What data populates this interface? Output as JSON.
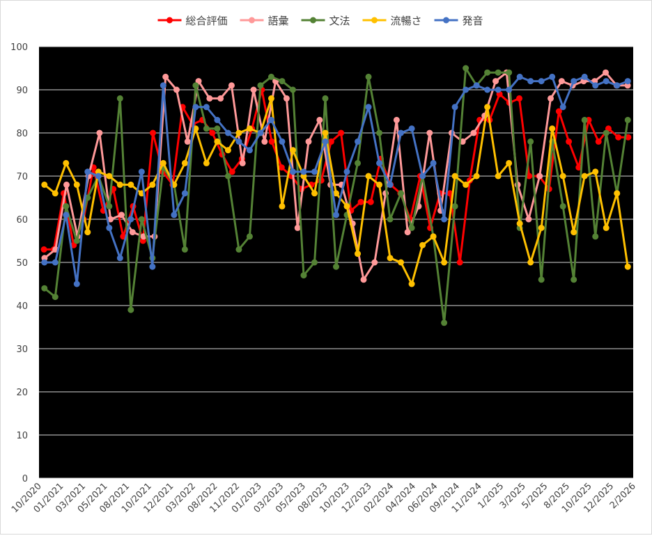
{
  "chart_data": {
    "type": "line",
    "title": "",
    "xlabel": "",
    "ylabel": "",
    "ylim": [
      0,
      100
    ],
    "yticks": [
      0,
      10,
      20,
      30,
      40,
      50,
      60,
      70,
      80,
      90,
      100
    ],
    "grid": true,
    "legend_position": "top",
    "plot_background": "#000000",
    "x_tick_labels": [
      "10/2020",
      "01/2021",
      "03/2021",
      "05/2021",
      "08/2021",
      "10/2021",
      "12/2021",
      "03/2022",
      "08/2022",
      "11/2022",
      "01/2023",
      "03/2023",
      "05/2023",
      "08/2023",
      "10/2023",
      "12/2023",
      "02/2024",
      "04/2024",
      "06/2024",
      "09/2024",
      "11/2024",
      "1/2025",
      "3/2025",
      "5/2025",
      "8/2025",
      "10/2025",
      "12/2025",
      "2/2026"
    ],
    "series": [
      {
        "name": "総合評価",
        "color": "#ff0000",
        "values": [
          53,
          53,
          66,
          54,
          60,
          72,
          62,
          67,
          56,
          63,
          55,
          80,
          71,
          68,
          86,
          82,
          83,
          80,
          75,
          71,
          74,
          81,
          90,
          78,
          72,
          70,
          67,
          68,
          69,
          78,
          80,
          62,
          64,
          64,
          74,
          68,
          66,
          60,
          70,
          58,
          66,
          66,
          50,
          69,
          83,
          83,
          89,
          87,
          88,
          70,
          70,
          67,
          85,
          78,
          72,
          83,
          78,
          81,
          79,
          79
        ]
      },
      {
        "name": "語彙",
        "color": "#ff9999",
        "values": [
          51,
          53,
          68,
          56,
          70,
          80,
          60,
          61,
          57,
          56,
          56,
          93,
          90,
          78,
          92,
          88,
          88,
          91,
          73,
          90,
          78,
          92,
          88,
          58,
          78,
          83,
          68,
          68,
          59,
          46,
          50,
          66,
          83,
          57,
          63,
          80,
          62,
          80,
          78,
          80,
          84,
          92,
          94,
          68,
          60,
          70,
          88,
          92,
          91,
          92,
          92,
          94,
          91,
          91
        ]
      },
      {
        "name": "文法",
        "color": "#548235",
        "values": [
          44,
          42,
          63,
          55,
          65,
          70,
          63,
          88,
          39,
          60,
          51,
          72,
          68,
          53,
          91,
          81,
          81,
          70,
          53,
          56,
          91,
          93,
          92,
          90,
          47,
          50,
          88,
          49,
          61,
          73,
          93,
          80,
          60,
          66,
          58,
          70,
          56,
          36,
          63,
          95,
          91,
          94,
          94,
          94,
          58,
          78,
          46,
          78,
          63,
          46,
          83,
          56,
          80,
          66,
          83
        ]
      },
      {
        "name": "流暢さ",
        "color": "#ffc000",
        "values": [
          68,
          66,
          73,
          68,
          57,
          71,
          70,
          68,
          68,
          66,
          68,
          73,
          68,
          73,
          81,
          73,
          78,
          76,
          80,
          81,
          80,
          88,
          63,
          76,
          70,
          66,
          80,
          66,
          63,
          52,
          70,
          68,
          51,
          50,
          45,
          54,
          56,
          50,
          70,
          68,
          70,
          86,
          70,
          73,
          59,
          50,
          58,
          81,
          70,
          57,
          70,
          71,
          58,
          66,
          49
        ]
      },
      {
        "name": "発音",
        "color": "#4472c4",
        "values": [
          50,
          50,
          61,
          45,
          71,
          70,
          58,
          51,
          60,
          71,
          49,
          91,
          61,
          66,
          86,
          86,
          83,
          80,
          78,
          76,
          80,
          83,
          78,
          71,
          71,
          71,
          78,
          61,
          71,
          78,
          86,
          73,
          68,
          80,
          81,
          70,
          73,
          60,
          86,
          90,
          91,
          90,
          90,
          90,
          93,
          92,
          92,
          93,
          86,
          92,
          93,
          91,
          92,
          91,
          92
        ]
      }
    ]
  }
}
